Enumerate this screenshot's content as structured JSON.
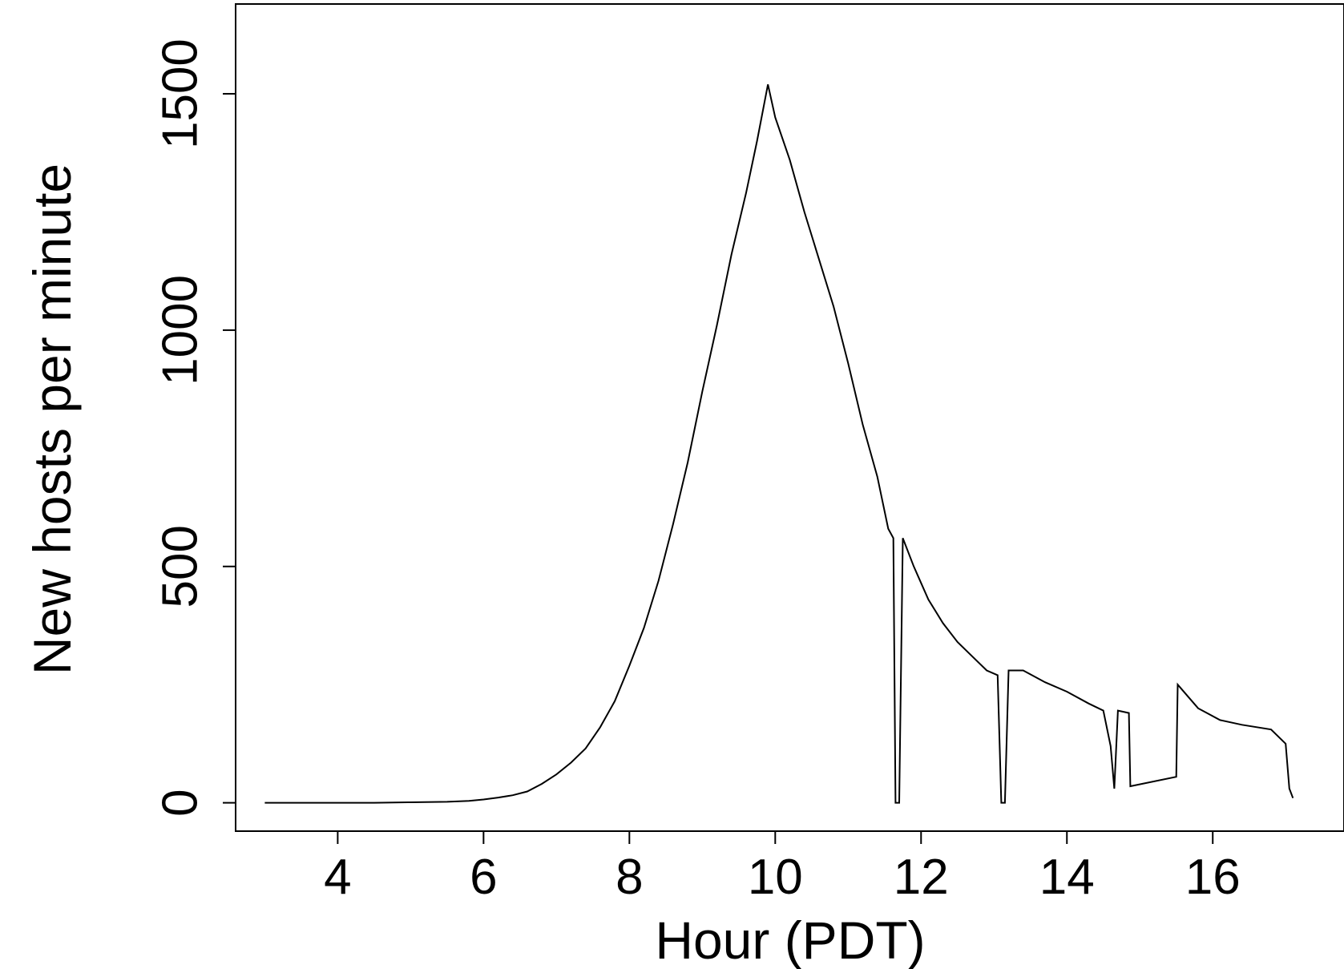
{
  "chart_data": {
    "type": "line",
    "title": "",
    "xlabel": "Hour (PDT)",
    "ylabel": "New hosts per minute",
    "xlim": [
      2.6,
      17.8
    ],
    "ylim": [
      -60,
      1690
    ],
    "xticks": [
      4,
      6,
      8,
      10,
      12,
      14,
      16
    ],
    "yticks": [
      0,
      500,
      1000,
      1500
    ],
    "grid": false,
    "legend": "none",
    "line_color": "#000000",
    "series": [
      {
        "points": [
          [
            3.0,
            0
          ],
          [
            3.5,
            0
          ],
          [
            4.0,
            0
          ],
          [
            4.5,
            0
          ],
          [
            5.0,
            1
          ],
          [
            5.5,
            2
          ],
          [
            5.8,
            4
          ],
          [
            6.0,
            7
          ],
          [
            6.2,
            11
          ],
          [
            6.4,
            16
          ],
          [
            6.6,
            24
          ],
          [
            6.8,
            40
          ],
          [
            7.0,
            60
          ],
          [
            7.2,
            85
          ],
          [
            7.4,
            115
          ],
          [
            7.6,
            160
          ],
          [
            7.8,
            215
          ],
          [
            8.0,
            290
          ],
          [
            8.2,
            370
          ],
          [
            8.4,
            470
          ],
          [
            8.6,
            590
          ],
          [
            8.8,
            720
          ],
          [
            9.0,
            870
          ],
          [
            9.2,
            1010
          ],
          [
            9.4,
            1160
          ],
          [
            9.6,
            1290
          ],
          [
            9.75,
            1400
          ],
          [
            9.9,
            1520
          ],
          [
            10.0,
            1450
          ],
          [
            10.2,
            1360
          ],
          [
            10.4,
            1250
          ],
          [
            10.6,
            1150
          ],
          [
            10.8,
            1050
          ],
          [
            11.0,
            930
          ],
          [
            11.2,
            800
          ],
          [
            11.4,
            690
          ],
          [
            11.55,
            580
          ],
          [
            11.62,
            560
          ],
          [
            11.65,
            0
          ],
          [
            11.7,
            0
          ],
          [
            11.75,
            560
          ],
          [
            11.9,
            500
          ],
          [
            12.1,
            430
          ],
          [
            12.3,
            380
          ],
          [
            12.5,
            340
          ],
          [
            12.7,
            310
          ],
          [
            12.9,
            280
          ],
          [
            13.05,
            270
          ],
          [
            13.1,
            0
          ],
          [
            13.15,
            0
          ],
          [
            13.2,
            280
          ],
          [
            13.4,
            280
          ],
          [
            13.7,
            255
          ],
          [
            14.0,
            235
          ],
          [
            14.3,
            210
          ],
          [
            14.5,
            195
          ],
          [
            14.6,
            120
          ],
          [
            14.65,
            30
          ],
          [
            14.7,
            195
          ],
          [
            14.85,
            190
          ],
          [
            14.87,
            35
          ],
          [
            15.5,
            55
          ],
          [
            15.52,
            250
          ],
          [
            15.8,
            200
          ],
          [
            16.1,
            175
          ],
          [
            16.4,
            165
          ],
          [
            16.8,
            155
          ],
          [
            17.0,
            125
          ],
          [
            17.05,
            30
          ],
          [
            17.1,
            10
          ]
        ]
      }
    ]
  }
}
